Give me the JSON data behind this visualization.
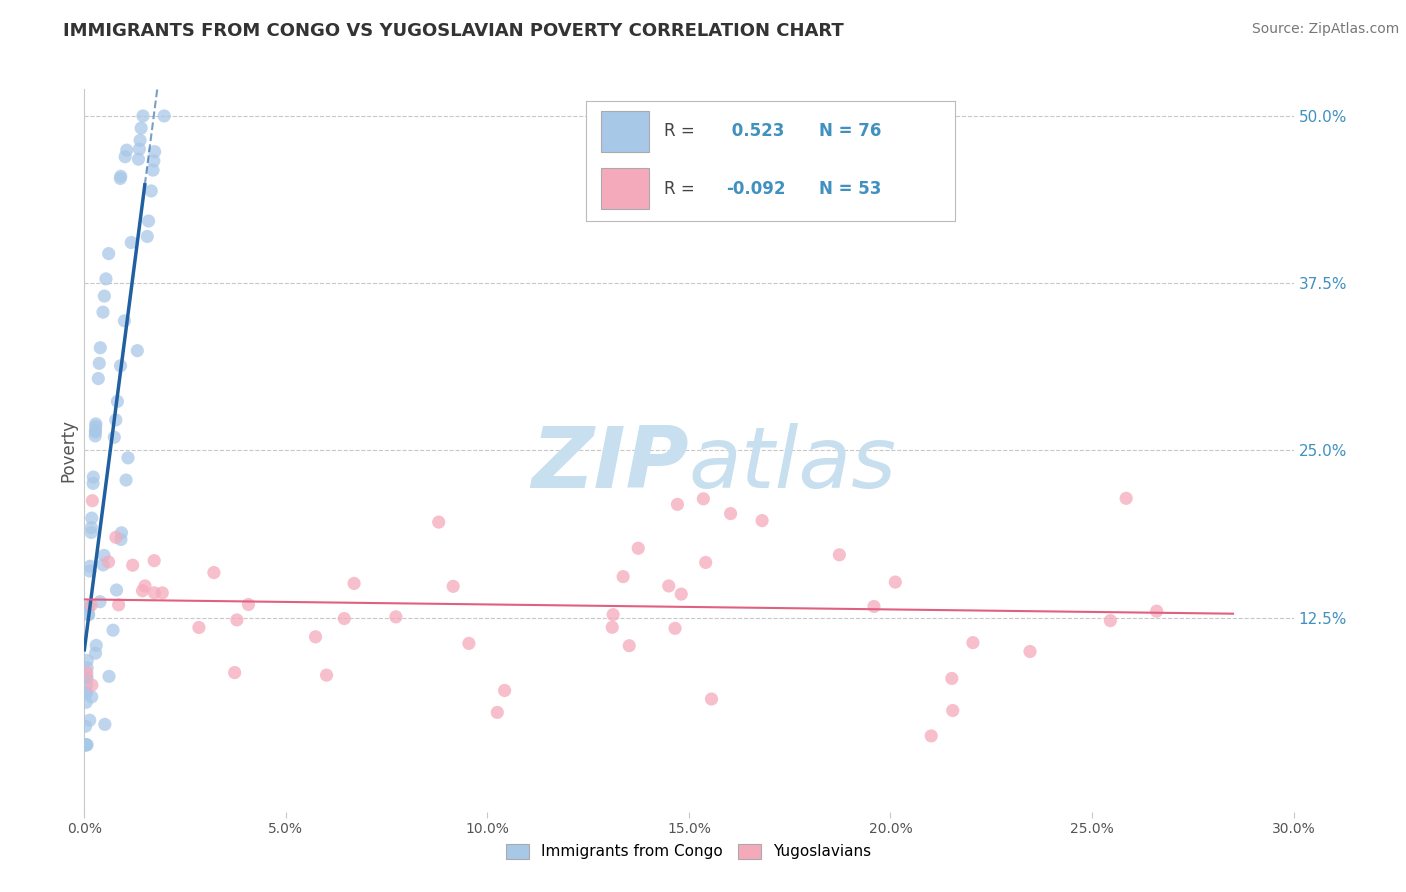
{
  "title": "IMMIGRANTS FROM CONGO VS YUGOSLAVIAN POVERTY CORRELATION CHART",
  "source": "Source: ZipAtlas.com",
  "ylabel": "Poverty",
  "xlim": [
    0.0,
    0.3
  ],
  "ylim": [
    -0.02,
    0.52
  ],
  "yticks_right": [
    0.125,
    0.25,
    0.375,
    0.5
  ],
  "ytick_labels_right": [
    "12.5%",
    "25.0%",
    "37.5%",
    "50.0%"
  ],
  "xticks": [
    0.0,
    0.05,
    0.1,
    0.15,
    0.2,
    0.25,
    0.3
  ],
  "xtick_labels": [
    "0.0%",
    "5.0%",
    "10.0%",
    "15.0%",
    "20.0%",
    "25.0%",
    "30.0%"
  ],
  "legend_labels": [
    "Immigrants from Congo",
    "Yugoslavians"
  ],
  "R_congo": 0.523,
  "N_congo": 76,
  "R_yugo": -0.092,
  "N_yugo": 53,
  "blue_scatter_color": "#A8C8E8",
  "pink_scatter_color": "#F5AABC",
  "blue_line_color": "#2060A0",
  "pink_line_color": "#E06080",
  "background_color": "#FFFFFF",
  "grid_color": "#C8C8C8",
  "watermark_color": "#C8DFF0",
  "title_color": "#333333",
  "source_color": "#777777",
  "label_color": "#555555",
  "right_tick_color": "#4090C0"
}
